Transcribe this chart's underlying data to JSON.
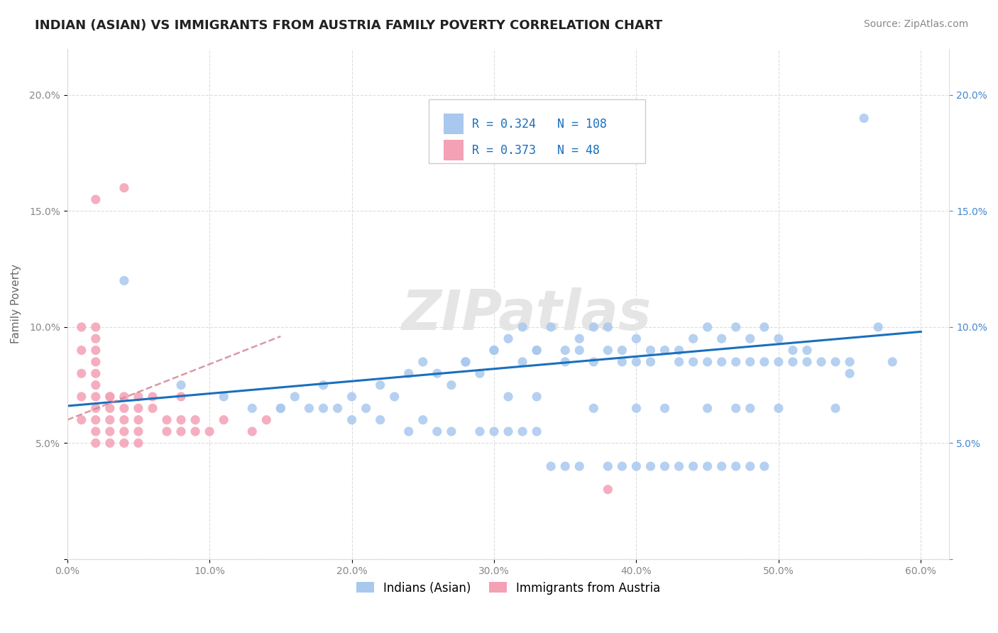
{
  "title": "INDIAN (ASIAN) VS IMMIGRANTS FROM AUSTRIA FAMILY POVERTY CORRELATION CHART",
  "source": "Source: ZipAtlas.com",
  "ylabel": "Family Poverty",
  "watermark": "ZIPatlas",
  "legend1_label": "Indians (Asian)",
  "legend2_label": "Immigrants from Austria",
  "R1": 0.324,
  "N1": 108,
  "R2": 0.373,
  "N2": 48,
  "color1": "#a8c8ee",
  "color2": "#f4a0b5",
  "trendline1_color": "#1a6fbd",
  "trendline2_color": "#d08090",
  "background_color": "#ffffff",
  "grid_color": "#dddddd",
  "xlim": [
    0.0,
    0.62
  ],
  "ylim": [
    0.0,
    0.22
  ],
  "xticks": [
    0.0,
    0.1,
    0.2,
    0.3,
    0.4,
    0.5,
    0.6
  ],
  "yticks": [
    0.0,
    0.05,
    0.1,
    0.15,
    0.2
  ],
  "xticklabels": [
    "0.0%",
    "10.0%",
    "20.0%",
    "30.0%",
    "40.0%",
    "50.0%",
    "60.0%"
  ],
  "yticklabels_left": [
    "",
    "5.0%",
    "10.0%",
    "15.0%",
    "20.0%"
  ],
  "yticklabels_right": [
    "",
    "5.0%",
    "10.0%",
    "15.0%",
    "20.0%"
  ],
  "scatter1_x": [
    0.04,
    0.08,
    0.11,
    0.13,
    0.15,
    0.16,
    0.17,
    0.18,
    0.19,
    0.2,
    0.21,
    0.22,
    0.23,
    0.24,
    0.25,
    0.26,
    0.27,
    0.28,
    0.29,
    0.3,
    0.31,
    0.31,
    0.32,
    0.33,
    0.33,
    0.34,
    0.35,
    0.36,
    0.37,
    0.37,
    0.38,
    0.39,
    0.4,
    0.4,
    0.41,
    0.42,
    0.42,
    0.43,
    0.44,
    0.45,
    0.45,
    0.46,
    0.47,
    0.47,
    0.48,
    0.48,
    0.49,
    0.5,
    0.5,
    0.51,
    0.52,
    0.53,
    0.54,
    0.55,
    0.56,
    0.28,
    0.3,
    0.32,
    0.33,
    0.35,
    0.36,
    0.37,
    0.38,
    0.39,
    0.4,
    0.41,
    0.43,
    0.44,
    0.45,
    0.46,
    0.47,
    0.48,
    0.49,
    0.5,
    0.51,
    0.52,
    0.54,
    0.55,
    0.57,
    0.58,
    0.15,
    0.18,
    0.2,
    0.22,
    0.24,
    0.25,
    0.26,
    0.27,
    0.29,
    0.3,
    0.31,
    0.32,
    0.33,
    0.34,
    0.35,
    0.36,
    0.38,
    0.39,
    0.4,
    0.41,
    0.42,
    0.43,
    0.44,
    0.45,
    0.46,
    0.47,
    0.48,
    0.49
  ],
  "scatter1_y": [
    0.12,
    0.075,
    0.07,
    0.065,
    0.065,
    0.07,
    0.065,
    0.075,
    0.065,
    0.07,
    0.065,
    0.075,
    0.07,
    0.08,
    0.085,
    0.08,
    0.075,
    0.085,
    0.08,
    0.09,
    0.095,
    0.07,
    0.1,
    0.09,
    0.07,
    0.1,
    0.09,
    0.095,
    0.1,
    0.065,
    0.1,
    0.09,
    0.095,
    0.065,
    0.09,
    0.09,
    0.065,
    0.09,
    0.095,
    0.1,
    0.065,
    0.095,
    0.1,
    0.065,
    0.095,
    0.065,
    0.1,
    0.095,
    0.065,
    0.09,
    0.09,
    0.085,
    0.065,
    0.08,
    0.19,
    0.085,
    0.09,
    0.085,
    0.09,
    0.085,
    0.09,
    0.085,
    0.09,
    0.085,
    0.085,
    0.085,
    0.085,
    0.085,
    0.085,
    0.085,
    0.085,
    0.085,
    0.085,
    0.085,
    0.085,
    0.085,
    0.085,
    0.085,
    0.1,
    0.085,
    0.065,
    0.065,
    0.06,
    0.06,
    0.055,
    0.06,
    0.055,
    0.055,
    0.055,
    0.055,
    0.055,
    0.055,
    0.055,
    0.04,
    0.04,
    0.04,
    0.04,
    0.04,
    0.04,
    0.04,
    0.04,
    0.04,
    0.04,
    0.04,
    0.04,
    0.04,
    0.04,
    0.04
  ],
  "scatter2_x": [
    0.01,
    0.01,
    0.01,
    0.01,
    0.01,
    0.02,
    0.02,
    0.02,
    0.02,
    0.02,
    0.02,
    0.02,
    0.02,
    0.02,
    0.02,
    0.02,
    0.03,
    0.03,
    0.03,
    0.03,
    0.03,
    0.04,
    0.04,
    0.04,
    0.04,
    0.04,
    0.05,
    0.05,
    0.05,
    0.05,
    0.06,
    0.06,
    0.07,
    0.07,
    0.08,
    0.08,
    0.08,
    0.09,
    0.09,
    0.1,
    0.11,
    0.13,
    0.14,
    0.38,
    0.02,
    0.03,
    0.04,
    0.05
  ],
  "scatter2_y": [
    0.06,
    0.07,
    0.08,
    0.09,
    0.1,
    0.05,
    0.055,
    0.06,
    0.065,
    0.07,
    0.075,
    0.08,
    0.085,
    0.09,
    0.095,
    0.155,
    0.05,
    0.055,
    0.06,
    0.065,
    0.07,
    0.05,
    0.055,
    0.06,
    0.065,
    0.16,
    0.05,
    0.055,
    0.06,
    0.07,
    0.065,
    0.07,
    0.055,
    0.06,
    0.055,
    0.06,
    0.07,
    0.055,
    0.06,
    0.055,
    0.06,
    0.055,
    0.06,
    0.03,
    0.1,
    0.07,
    0.07,
    0.065
  ],
  "trendline1_x": [
    0.0,
    0.6
  ],
  "trendline1_y": [
    0.066,
    0.098
  ],
  "trendline2_x": [
    0.0,
    0.15
  ],
  "trendline2_y": [
    0.06,
    0.096
  ],
  "title_fontsize": 13,
  "axis_fontsize": 11,
  "tick_fontsize": 10,
  "legend_fontsize": 12,
  "watermark_fontsize": 56,
  "watermark_color": "#e5e5e5",
  "source_fontsize": 10,
  "title_color": "#222222",
  "axis_label_color": "#666666",
  "tick_color": "#888888",
  "right_tick_color": "#4488cc"
}
